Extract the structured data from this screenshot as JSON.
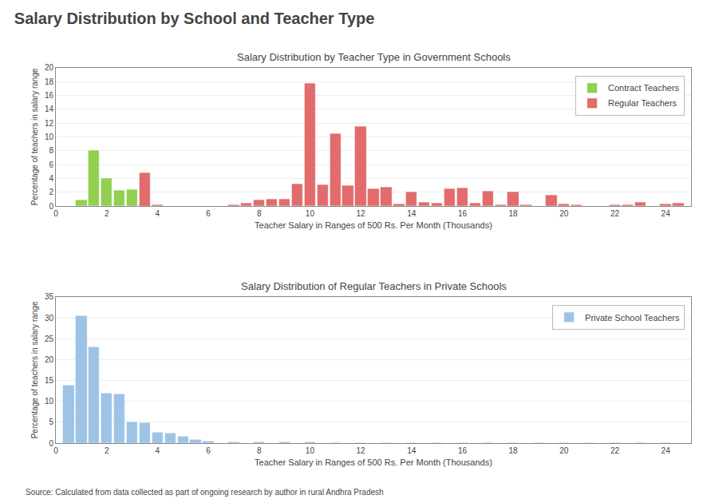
{
  "title": "Salary Distribution by School and Teacher Type",
  "annotations": [
    "Source: Calculated from data collected as part of ongoing research by author in rural Andhra Pradesh"
  ],
  "chart_data": [
    {
      "type": "bar",
      "title": "Salary Distribution by Teacher Type in Government Schools",
      "x_label": "Teacher Salary in Ranges of 500 Rs. Per Month (Thousands)",
      "y_label": "Percentage of teachers in salary range",
      "series": [
        {
          "name": "Contract Teachers",
          "color": "#92d050",
          "x": [
            1.0,
            1.5,
            2.0,
            2.5,
            3.0,
            3.5
          ],
          "values": [
            0.8,
            8.0,
            4.0,
            2.2,
            2.3,
            0.3
          ]
        },
        {
          "name": "Regular Teachers",
          "color": "#e26b6b",
          "x": [
            3.5,
            4.0,
            7.0,
            7.5,
            8.0,
            8.5,
            9.0,
            9.5,
            10.0,
            10.5,
            11.0,
            11.5,
            12.0,
            12.5,
            13.0,
            13.5,
            14.0,
            14.5,
            15.0,
            15.5,
            16.0,
            16.5,
            17.0,
            17.5,
            18.0,
            18.5,
            19.5,
            20.0,
            20.5,
            22.0,
            22.5,
            23.0,
            24.0,
            24.5
          ],
          "values": [
            4.8,
            0.2,
            0.15,
            0.4,
            0.8,
            1.0,
            0.9,
            3.2,
            17.7,
            3.0,
            10.4,
            2.9,
            11.5,
            2.5,
            2.7,
            0.3,
            2.0,
            0.5,
            0.4,
            2.5,
            2.6,
            0.4,
            2.1,
            0.15,
            2.0,
            0.2,
            1.5,
            0.3,
            0.2,
            0.2,
            0.15,
            0.5,
            0.3,
            0.4
          ]
        }
      ],
      "xlim": [
        0,
        25
      ],
      "xticks": [
        0,
        2,
        4,
        6,
        8,
        10,
        12,
        14,
        16,
        18,
        20,
        22,
        24
      ],
      "ylim": [
        0,
        20
      ],
      "yticks": [
        0,
        2,
        4,
        6,
        8,
        10,
        12,
        14,
        16,
        18,
        20
      ],
      "grid": true,
      "legend": "upper right"
    },
    {
      "type": "bar",
      "title": "Salary Distribution of Regular Teachers in Private Schools",
      "x_label": "Teacher Salary in Ranges of 500 Rs. Per Month (Thousands)",
      "y_label": "Percentage of teachers in salary range",
      "series": [
        {
          "name": "Private School Teachers",
          "color": "#9dc3e6",
          "x": [
            0.5,
            1.0,
            1.5,
            2.0,
            2.5,
            3.0,
            3.5,
            4.0,
            4.5,
            5.0,
            5.5,
            6.0,
            7.0,
            8.0,
            9.0,
            10.0,
            11.0,
            12.0,
            13.0,
            14.0,
            15.0,
            16.0,
            17.0,
            18.0,
            19.0,
            20.0,
            21.0,
            22.0,
            23.0,
            24.0
          ],
          "values": [
            13.8,
            30.5,
            22.9,
            11.9,
            11.7,
            5.0,
            4.8,
            2.6,
            2.3,
            1.5,
            0.8,
            0.5,
            0.3,
            0.2,
            0.15,
            0.15,
            0.1,
            0.1,
            0.1,
            0.1,
            0.1,
            0.1,
            0.1,
            0.1,
            0.05,
            0.05,
            0.05,
            0.05,
            0.05,
            0.05
          ]
        }
      ],
      "xlim": [
        0,
        25
      ],
      "xticks": [
        0,
        2,
        4,
        6,
        8,
        10,
        12,
        14,
        16,
        18,
        20,
        22,
        24
      ],
      "ylim": [
        0,
        35
      ],
      "yticks": [
        0,
        5,
        10,
        15,
        20,
        25,
        30,
        35
      ],
      "grid": true,
      "legend": "upper right"
    }
  ]
}
